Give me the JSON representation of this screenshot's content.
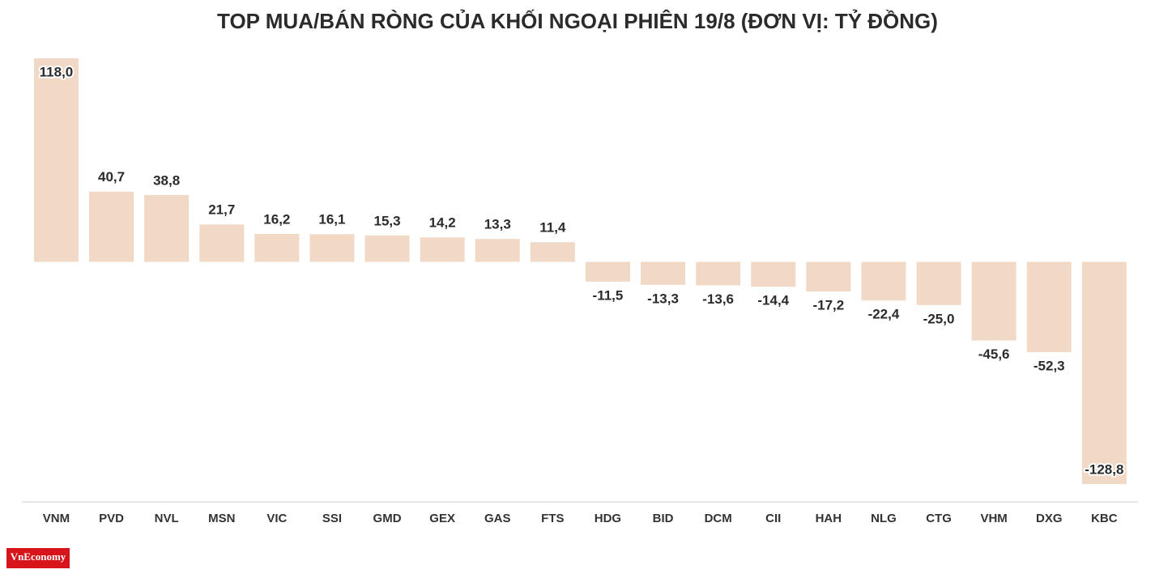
{
  "chart_data": {
    "type": "bar",
    "title": "TOP MUA/BÁN RÒNG CỦA KHỐI NGOẠI PHIÊN 19/8 (ĐƠN VỊ: TỶ ĐỒNG)",
    "categories": [
      "VNM",
      "PVD",
      "NVL",
      "MSN",
      "VIC",
      "SSI",
      "GMD",
      "GEX",
      "GAS",
      "FTS",
      "HDG",
      "BID",
      "DCM",
      "CII",
      "HAH",
      "NLG",
      "CTG",
      "VHM",
      "DXG",
      "KBC"
    ],
    "values": [
      118.0,
      40.7,
      38.8,
      21.7,
      16.2,
      16.1,
      15.3,
      14.2,
      13.3,
      11.4,
      -11.5,
      -13.3,
      -13.6,
      -14.4,
      -17.2,
      -22.4,
      -25.0,
      -45.6,
      -52.3,
      -128.8
    ],
    "value_labels": [
      "118,0",
      "40,7",
      "38,8",
      "21,7",
      "16,2",
      "16,1",
      "15,3",
      "14,2",
      "13,3",
      "11,4",
      "-11,5",
      "-13,3",
      "-13,6",
      "-14,4",
      "-17,2",
      "-22,4",
      "-25,0",
      "-45,6",
      "-52,3",
      "-128,8"
    ],
    "color": "#f2d9c6",
    "logo": "VnEconomy"
  }
}
